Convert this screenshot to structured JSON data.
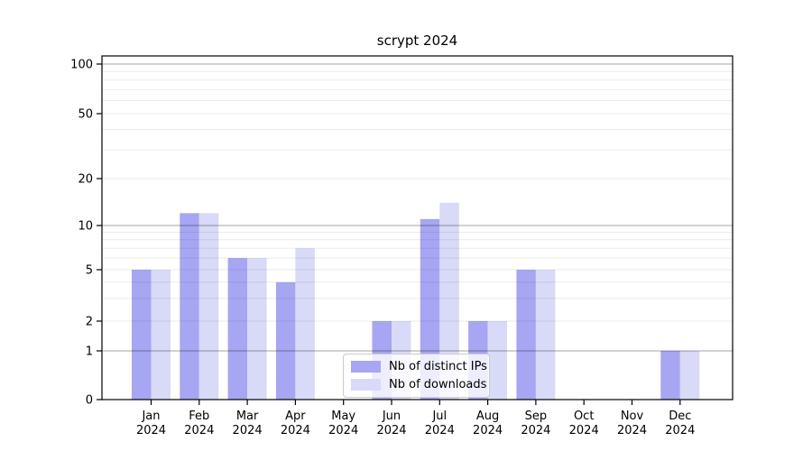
{
  "chart_data": {
    "type": "bar",
    "title": "scrypt 2024",
    "xlabel": "",
    "ylabel": "",
    "scale": "symlog",
    "grid": "horizontal",
    "legend_position": "inside-bottom-center",
    "year_label": "2024",
    "months": [
      "Jan",
      "Feb",
      "Mar",
      "Apr",
      "May",
      "Jun",
      "Jul",
      "Aug",
      "Sep",
      "Oct",
      "Nov",
      "Dec"
    ],
    "y_ticks": [
      0,
      1,
      2,
      5,
      10,
      20,
      50,
      100
    ],
    "ylim": [
      0,
      100
    ],
    "series": [
      {
        "name": "Nb of distinct IPs",
        "color": "#a6a6f2",
        "values": [
          5,
          12,
          6,
          4,
          0,
          2,
          11,
          2,
          5,
          0,
          0,
          1
        ]
      },
      {
        "name": "Nb of downloads",
        "color": "#d9d9f8",
        "values": [
          5,
          12,
          6,
          7,
          0,
          2,
          14,
          2,
          5,
          0,
          0,
          1
        ]
      }
    ]
  }
}
